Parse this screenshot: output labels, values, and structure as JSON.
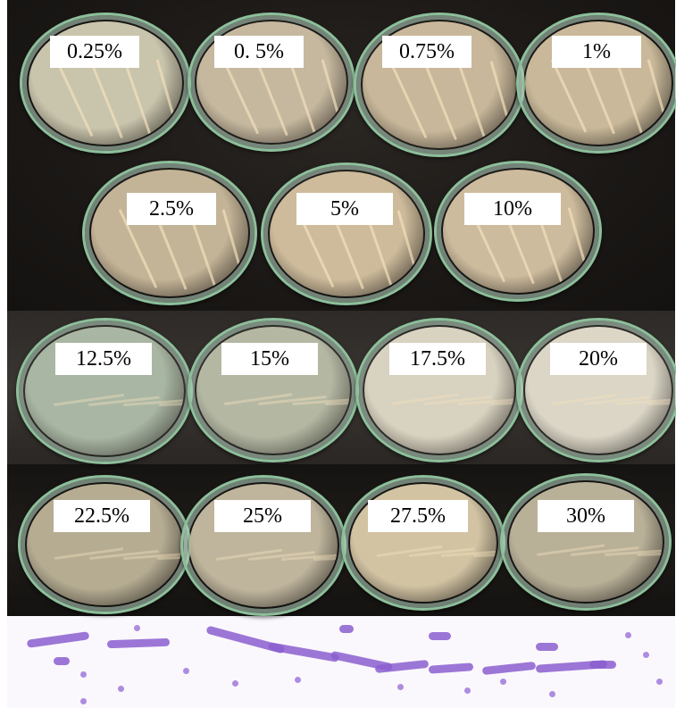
{
  "plates": [
    {
      "label": "0.25%",
      "agar": "#c9c4ac"
    },
    {
      "label": "0. 5%",
      "agar": "#c6b89f"
    },
    {
      "label": "0.75%",
      "agar": "#c8b79a"
    },
    {
      "label": "1%",
      "agar": "#c9b99a"
    },
    {
      "label": "2.5%",
      "agar": "#c4b497"
    },
    {
      "label": "5%",
      "agar": "#cdbb9b"
    },
    {
      "label": "10%",
      "agar": "#cdbb9d"
    },
    {
      "label": "12.5%",
      "agar": "#a9b6a3"
    },
    {
      "label": "15%",
      "agar": "#b4b8a3"
    },
    {
      "label": "17.5%",
      "agar": "#d8d2c0"
    },
    {
      "label": "20%",
      "agar": "#dbd6c6"
    },
    {
      "label": "22.5%",
      "agar": "#b5ac92"
    },
    {
      "label": "25%",
      "agar": "#bfb59d"
    },
    {
      "label": "27.5%",
      "agar": "#d2c3a3"
    },
    {
      "label": "30%",
      "agar": "#b9b098"
    }
  ],
  "colors": {
    "plate_rim": "#8dbf9b",
    "label_background": "#ffffff",
    "micrograph_background": "#fbf8fd",
    "stain": "#8b5fcf"
  }
}
